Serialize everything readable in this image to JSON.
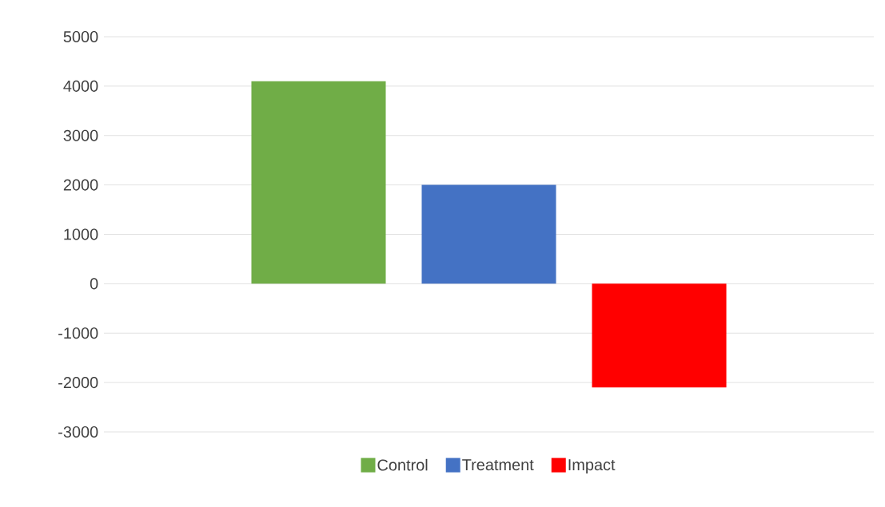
{
  "chart_data": {
    "type": "bar",
    "categories": [
      null
    ],
    "series": [
      {
        "name": "Control",
        "color": "#70ad47",
        "values": [
          4100
        ]
      },
      {
        "name": "Treatment",
        "color": "#4472c4",
        "values": [
          2000
        ]
      },
      {
        "name": "Impact",
        "color": "#ff0000",
        "values": [
          -2100
        ]
      }
    ],
    "ylim": [
      -3000,
      5000
    ],
    "yticks": [
      -3000,
      -2000,
      -1000,
      0,
      1000,
      2000,
      3000,
      4000,
      5000
    ],
    "grid": "y",
    "legend": "bottom",
    "tick_labels": "y"
  }
}
